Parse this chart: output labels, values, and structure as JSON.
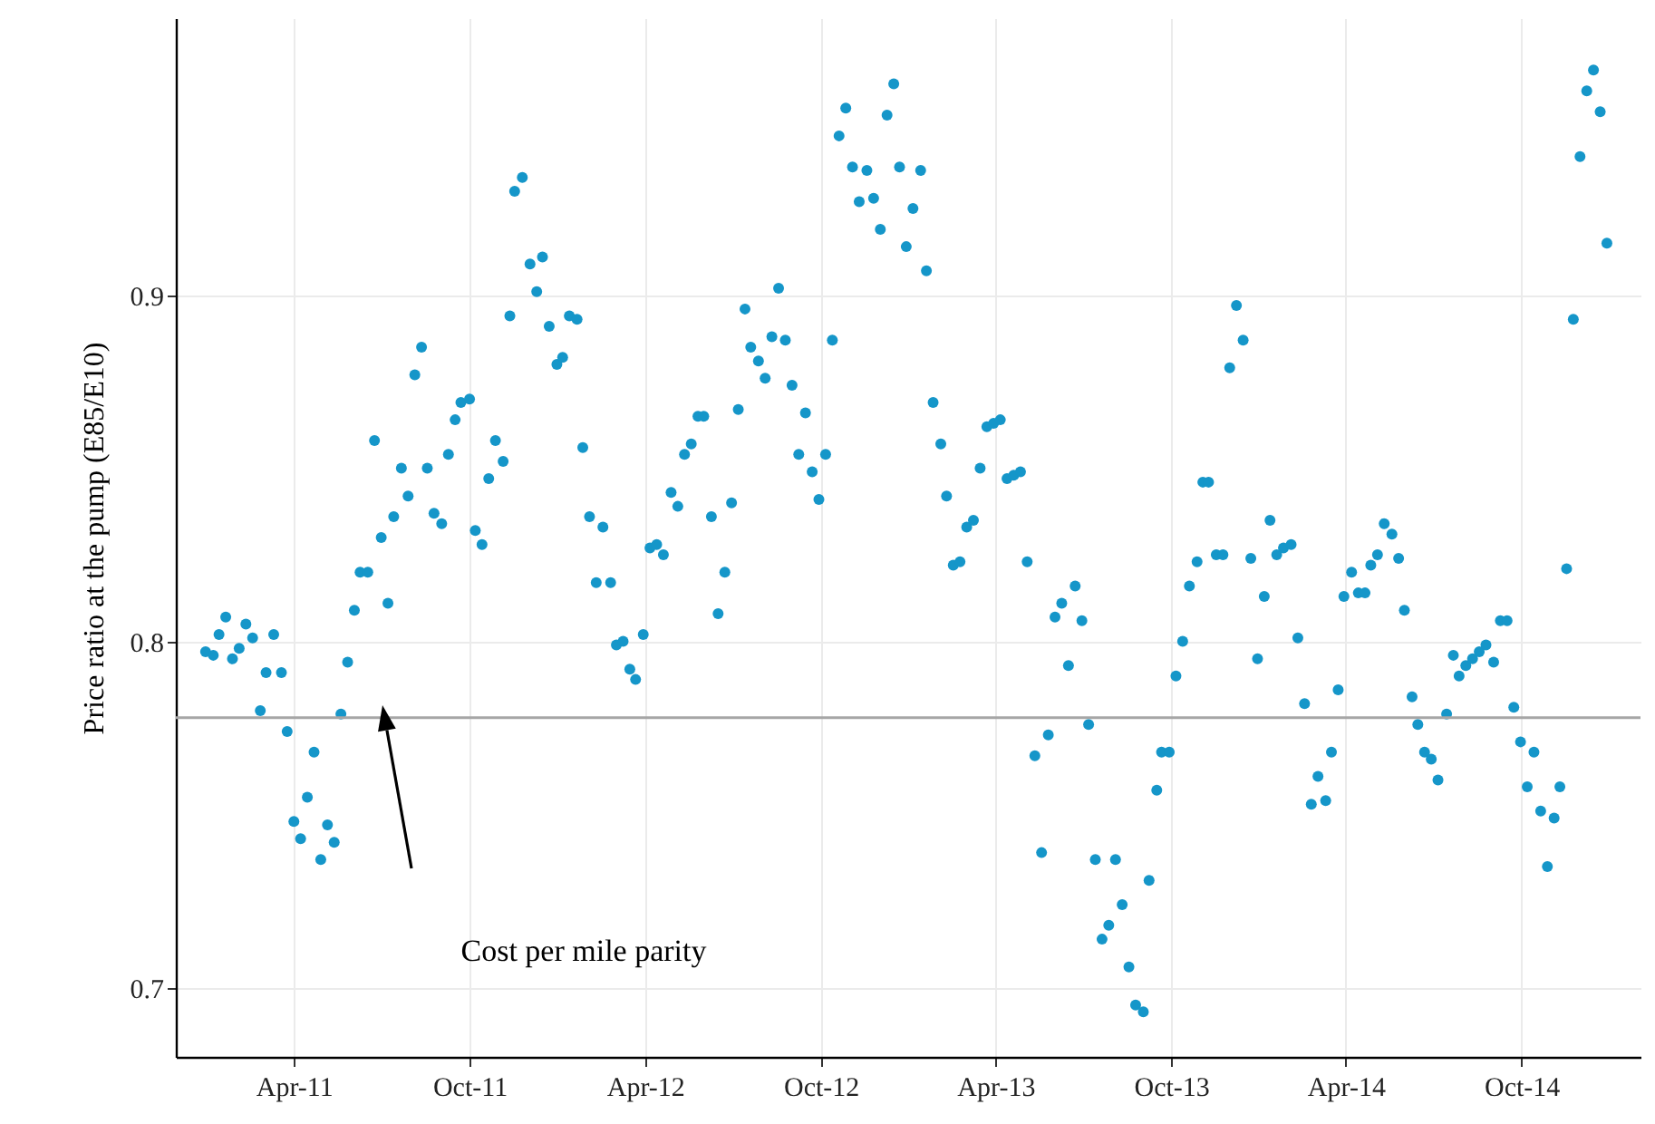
{
  "chart_data": {
    "type": "scatter",
    "ylabel": "Price ratio at the pump (E85/E10)",
    "annotations": [
      "Cost per mile parity"
    ],
    "x": [
      "2010-12-30",
      "2011-01-07",
      "2011-01-13",
      "2011-01-20",
      "2011-01-27",
      "2011-02-03",
      "2011-02-10",
      "2011-02-17",
      "2011-02-25",
      "2011-03-03",
      "2011-03-11",
      "2011-03-19",
      "2011-03-25",
      "2011-04-01",
      "2011-04-08",
      "2011-04-15",
      "2011-04-22",
      "2011-04-29",
      "2011-05-06",
      "2011-05-13",
      "2011-05-20",
      "2011-05-27",
      "2011-06-03",
      "2011-06-09",
      "2011-06-17",
      "2011-06-24",
      "2011-07-01",
      "2011-07-08",
      "2011-07-14",
      "2011-07-22",
      "2011-07-29",
      "2011-08-05",
      "2011-08-12",
      "2011-08-18",
      "2011-08-25",
      "2011-09-02",
      "2011-09-09",
      "2011-09-16",
      "2011-09-22",
      "2011-10-01",
      "2011-10-07",
      "2011-10-14",
      "2011-10-21",
      "2011-10-28",
      "2011-11-05",
      "2011-11-12",
      "2011-11-17",
      "2011-11-25",
      "2011-12-03",
      "2011-12-10",
      "2011-12-16",
      "2011-12-23",
      "2011-12-31",
      "2012-01-06",
      "2012-01-13",
      "2012-01-21",
      "2012-01-27",
      "2012-02-03",
      "2012-02-10",
      "2012-02-17",
      "2012-02-25",
      "2012-03-02",
      "2012-03-09",
      "2012-03-16",
      "2012-03-22",
      "2012-03-30",
      "2012-04-06",
      "2012-04-13",
      "2012-04-20",
      "2012-04-28",
      "2012-05-05",
      "2012-05-12",
      "2012-05-19",
      "2012-05-26",
      "2012-06-01",
      "2012-06-09",
      "2012-06-16",
      "2012-06-23",
      "2012-06-30",
      "2012-07-07",
      "2012-07-14",
      "2012-07-20",
      "2012-07-28",
      "2012-08-04",
      "2012-08-11",
      "2012-08-18",
      "2012-08-25",
      "2012-09-01",
      "2012-09-08",
      "2012-09-15",
      "2012-09-22",
      "2012-09-29",
      "2012-10-06",
      "2012-10-13",
      "2012-10-20",
      "2012-10-27",
      "2012-11-03",
      "2012-11-10",
      "2012-11-18",
      "2012-11-25",
      "2012-12-02",
      "2012-12-09",
      "2012-12-16",
      "2012-12-22",
      "2012-12-29",
      "2013-01-05",
      "2013-01-13",
      "2013-01-19",
      "2013-01-26",
      "2013-02-03",
      "2013-02-09",
      "2013-02-16",
      "2013-02-23",
      "2013-03-02",
      "2013-03-09",
      "2013-03-16",
      "2013-03-23",
      "2013-03-30",
      "2013-04-06",
      "2013-04-13",
      "2013-04-20",
      "2013-04-27",
      "2013-05-04",
      "2013-05-12",
      "2013-05-19",
      "2013-05-26",
      "2013-06-02",
      "2013-06-09",
      "2013-06-16",
      "2013-06-23",
      "2013-06-30",
      "2013-07-07",
      "2013-07-14",
      "2013-07-21",
      "2013-07-28",
      "2013-08-04",
      "2013-08-11",
      "2013-08-18",
      "2013-08-25",
      "2013-09-02",
      "2013-09-08",
      "2013-09-16",
      "2013-09-21",
      "2013-09-29",
      "2013-10-06",
      "2013-10-13",
      "2013-10-20",
      "2013-10-28",
      "2013-11-03",
      "2013-11-09",
      "2013-11-17",
      "2013-11-24",
      "2013-12-01",
      "2013-12-08",
      "2013-12-15",
      "2013-12-23",
      "2013-12-30",
      "2014-01-06",
      "2014-01-12",
      "2014-01-19",
      "2014-01-26",
      "2014-02-03",
      "2014-02-10",
      "2014-02-17",
      "2014-02-24",
      "2014-03-03",
      "2014-03-11",
      "2014-03-17",
      "2014-03-24",
      "2014-03-30",
      "2014-04-07",
      "2014-04-14",
      "2014-04-21",
      "2014-04-27",
      "2014-05-04",
      "2014-05-11",
      "2014-05-19",
      "2014-05-26",
      "2014-06-01",
      "2014-06-09",
      "2014-06-15",
      "2014-06-22",
      "2014-06-29",
      "2014-07-06",
      "2014-07-15",
      "2014-07-22",
      "2014-07-28",
      "2014-08-04",
      "2014-08-11",
      "2014-08-18",
      "2014-08-25",
      "2014-09-02",
      "2014-09-09",
      "2014-09-16",
      "2014-09-23",
      "2014-09-30",
      "2014-10-07",
      "2014-10-14",
      "2014-10-21",
      "2014-10-28",
      "2014-11-04",
      "2014-11-10",
      "2014-11-17",
      "2014-11-24",
      "2014-12-01",
      "2014-12-08",
      "2014-12-15",
      "2014-12-22",
      "2014-12-29"
    ],
    "series": [
      {
        "color": "#1596c9",
        "values": [
          0.797,
          0.796,
          0.802,
          0.807,
          0.795,
          0.798,
          0.805,
          0.801,
          0.78,
          0.791,
          0.802,
          0.791,
          0.774,
          0.748,
          0.743,
          0.755,
          0.768,
          0.737,
          0.747,
          0.742,
          0.779,
          0.794,
          0.809,
          0.82,
          0.82,
          0.858,
          0.83,
          0.811,
          0.836,
          0.85,
          0.842,
          0.877,
          0.885,
          0.85,
          0.837,
          0.834,
          0.854,
          0.864,
          0.869,
          0.87,
          0.832,
          0.828,
          0.847,
          0.858,
          0.852,
          0.894,
          0.93,
          0.934,
          0.909,
          0.901,
          0.911,
          0.891,
          0.88,
          0.882,
          0.894,
          0.893,
          0.856,
          0.836,
          0.817,
          0.833,
          0.817,
          0.799,
          0.8,
          0.792,
          0.789,
          0.802,
          0.827,
          0.828,
          0.825,
          0.843,
          0.839,
          0.854,
          0.857,
          0.865,
          0.865,
          0.836,
          0.808,
          0.82,
          0.84,
          0.867,
          0.896,
          0.885,
          0.881,
          0.876,
          0.888,
          0.902,
          0.887,
          0.874,
          0.854,
          0.866,
          0.849,
          0.841,
          0.854,
          0.887,
          0.946,
          0.954,
          0.937,
          0.927,
          0.936,
          0.928,
          0.919,
          0.952,
          0.961,
          0.937,
          0.914,
          0.925,
          0.936,
          0.907,
          0.869,
          0.857,
          0.842,
          0.822,
          0.823,
          0.833,
          0.835,
          0.85,
          0.862,
          0.863,
          0.864,
          0.847,
          0.848,
          0.849,
          0.823,
          0.767,
          0.739,
          0.773,
          0.807,
          0.811,
          0.793,
          0.816,
          0.806,
          0.776,
          0.737,
          0.714,
          0.718,
          0.737,
          0.724,
          0.706,
          0.695,
          0.693,
          0.731,
          0.757,
          0.768,
          0.768,
          0.79,
          0.8,
          0.816,
          0.823,
          0.846,
          0.846,
          0.825,
          0.825,
          0.879,
          0.897,
          0.887,
          0.824,
          0.795,
          0.813,
          0.835,
          0.825,
          0.827,
          0.828,
          0.801,
          0.782,
          0.753,
          0.761,
          0.754,
          0.768,
          0.786,
          0.813,
          0.82,
          0.814,
          0.814,
          0.822,
          0.825,
          0.834,
          0.831,
          0.824,
          0.809,
          0.784,
          0.776,
          0.768,
          0.766,
          0.76,
          0.779,
          0.796,
          0.79,
          0.793,
          0.795,
          0.797,
          0.799,
          0.794,
          0.806,
          0.806,
          0.781,
          0.771,
          0.758,
          0.768,
          0.751,
          0.735,
          0.749,
          0.758,
          0.821,
          0.893,
          0.94,
          0.959,
          0.965,
          0.953,
          0.915
        ]
      }
    ],
    "xlim": [
      "2010-11-29",
      "2015-02-02"
    ],
    "xticks": [
      {
        "value": "2011-04-01",
        "label": "Apr-11"
      },
      {
        "value": "2011-10-01",
        "label": "Oct-11"
      },
      {
        "value": "2012-04-01",
        "label": "Apr-12"
      },
      {
        "value": "2012-10-01",
        "label": "Oct-12"
      },
      {
        "value": "2013-04-01",
        "label": "Apr-13"
      },
      {
        "value": "2013-10-01",
        "label": "Oct-13"
      },
      {
        "value": "2014-04-01",
        "label": "Apr-14"
      },
      {
        "value": "2014-10-01",
        "label": "Oct-14"
      }
    ],
    "ylim": [
      0.68,
      0.98
    ],
    "yticks": [
      0.7,
      0.8,
      0.9
    ],
    "ref_lines": [
      {
        "axis": "y",
        "value": 0.778,
        "color": "#a6a6a6"
      }
    ],
    "grid": true,
    "marker": "circle"
  }
}
